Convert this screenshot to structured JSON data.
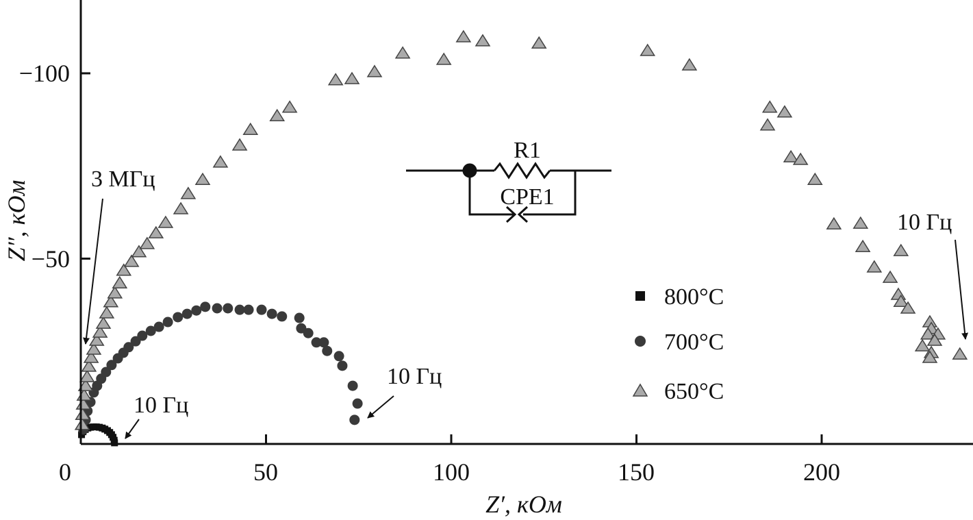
{
  "chart_data": {
    "type": "scatter",
    "title": "",
    "xlabel": "Z′, кОм",
    "ylabel": "Z″, кОм",
    "xlim": [
      0,
      240.9
    ],
    "ylim": [
      0,
      -119.8
    ],
    "x_ticks": [
      0,
      50,
      100,
      150,
      200
    ],
    "x_tick_labels": [
      "0",
      "50",
      "100",
      "150",
      "200"
    ],
    "y_ticks": [
      -100,
      -50
    ],
    "y_tick_labels": [
      "−100",
      "−50"
    ],
    "grid": false,
    "legend_position": "center-right",
    "series": [
      {
        "name": "800°C",
        "marker": "square",
        "color": "#111111",
        "x": [
          0.2,
          0.6,
          1.2,
          1.9,
          2.6,
          3.4,
          4.2,
          5.0,
          5.8,
          6.5,
          7.2,
          7.8,
          8.3,
          8.7,
          9.0,
          9.1
        ],
        "y": [
          -2.5,
          -3.3,
          -3.9,
          -4.3,
          -4.5,
          -4.6,
          -4.6,
          -4.5,
          -4.3,
          -4.0,
          -3.6,
          -3.1,
          -2.5,
          -1.8,
          -1.0,
          -0.3
        ]
      },
      {
        "name": "700°C",
        "marker": "circle",
        "color": "#3a3a3a",
        "x": [
          0.7,
          1.3,
          1.8,
          2.6,
          3.5,
          4.4,
          5.5,
          6.8,
          8.3,
          10.0,
          11.5,
          12.9,
          14.8,
          16.6,
          18.9,
          21.1,
          23.5,
          26.2,
          28.7,
          31.2,
          33.6,
          36.8,
          39.7,
          42.9,
          45.3,
          48.8,
          51.6,
          54.3,
          59.0,
          59.5,
          61.4,
          63.6,
          65.6,
          66.5,
          69.7,
          70.6,
          73.4,
          74.7,
          73.9
        ],
        "y": [
          -3.9,
          -6.5,
          -8.9,
          -11.3,
          -13.9,
          -15.7,
          -17.6,
          -19.4,
          -21.3,
          -23.1,
          -24.6,
          -26.1,
          -27.7,
          -29.2,
          -30.5,
          -31.6,
          -32.9,
          -34.2,
          -35.1,
          -36.0,
          -37.0,
          -36.6,
          -36.6,
          -36.2,
          -36.2,
          -36.2,
          -35.1,
          -34.4,
          -34.0,
          -31.2,
          -29.9,
          -27.4,
          -27.4,
          -25.1,
          -23.7,
          -21.1,
          -15.7,
          -10.9,
          -6.5
        ]
      },
      {
        "name": "650°C",
        "marker": "triangle",
        "color": "#aaaaaa",
        "x": [
          0.4,
          0.5,
          0.7,
          0.9,
          1.3,
          1.7,
          2.2,
          2.8,
          3.5,
          4.3,
          5.2,
          6.1,
          7.0,
          8.1,
          9.2,
          10.5,
          11.6,
          13.7,
          15.7,
          17.9,
          20.3,
          22.9,
          27.0,
          29.0,
          32.9,
          37.7,
          42.9,
          45.8,
          53.0,
          56.4,
          68.8,
          73.2,
          79.3,
          86.9,
          98.0,
          103.3,
          108.5,
          123.7,
          153.0,
          164.3,
          185.4,
          186.0,
          190.0,
          191.7,
          194.3,
          198.2,
          203.3,
          210.5,
          211.1,
          214.2,
          218.5,
          220.7,
          221.4,
          221.4,
          223.3,
          229.2,
          229.6,
          228.7,
          231.4,
          230.5,
          227.2,
          229.6,
          229.2,
          237.3
        ],
        "y": [
          -5.2,
          -7.9,
          -10.7,
          -13.1,
          -15.7,
          -18.1,
          -20.9,
          -23.3,
          -25.5,
          -27.9,
          -30.1,
          -32.5,
          -35.3,
          -38.3,
          -40.7,
          -43.4,
          -46.8,
          -49.2,
          -51.8,
          -54.0,
          -56.9,
          -59.7,
          -63.4,
          -67.5,
          -71.3,
          -76.0,
          -80.6,
          -84.8,
          -88.5,
          -90.8,
          -98.2,
          -98.5,
          -100.4,
          -105.4,
          -103.7,
          -109.8,
          -108.7,
          -108.1,
          -106.1,
          -102.2,
          -86.0,
          -90.8,
          -89.5,
          -77.4,
          -76.7,
          -71.3,
          -59.3,
          -59.5,
          -53.2,
          -47.7,
          -44.9,
          -40.3,
          -38.4,
          -52.1,
          -36.6,
          -32.9,
          -31.1,
          -29.6,
          -29.6,
          -27.9,
          -26.4,
          -24.6,
          -23.3,
          -24.2
        ]
      }
    ],
    "annotations": [
      {
        "id": "a3m",
        "text": "3 МГц"
      },
      {
        "id": "a800",
        "text": "10 Гц"
      },
      {
        "id": "a700",
        "text": "10 Гц"
      },
      {
        "id": "a650",
        "text": "10 Гц"
      }
    ],
    "inset": {
      "r_label": "R1",
      "cpe_label": "CPE1"
    }
  }
}
